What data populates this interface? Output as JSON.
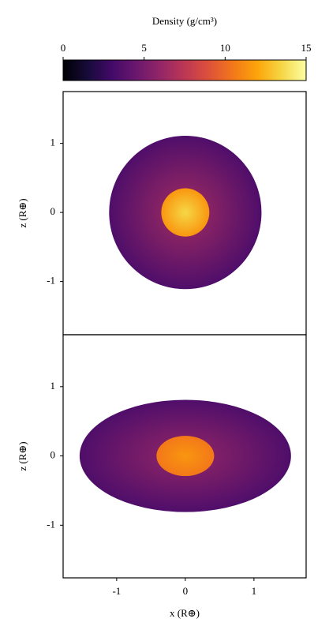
{
  "chart_data": [
    {
      "type": "colorbar",
      "label": "Density (g/cm³)",
      "xlim": [
        0,
        15
      ],
      "xticks": [
        0,
        5,
        10,
        15
      ],
      "colormap": "inferno"
    },
    {
      "type": "density_map",
      "ylabel": "z (R⊕)",
      "xlim": [
        -1.78,
        1.76
      ],
      "ylim": [
        -1.77,
        1.75
      ],
      "yticks": [
        -1,
        0,
        1
      ],
      "colormap": "inferno",
      "regions": [
        {
          "semi_x": 1.11,
          "semi_z": 1.11,
          "density": [
            3.5,
            6.5
          ]
        },
        {
          "semi_x": 0.35,
          "semi_z": 0.35,
          "density": [
            11.5,
            13.5
          ]
        }
      ]
    },
    {
      "type": "density_map",
      "ylabel": "z (R⊕)",
      "xlabel": "x (R⊕)",
      "xlim": [
        -1.78,
        1.76
      ],
      "ylim": [
        -1.76,
        1.75
      ],
      "yticks": [
        -1,
        0,
        1
      ],
      "xticks": [
        -1,
        0,
        1
      ],
      "colormap": "inferno",
      "regions": [
        {
          "semi_x": 1.54,
          "semi_z": 0.81,
          "density": [
            3.5,
            6.0
          ]
        },
        {
          "semi_x": 0.42,
          "semi_z": 0.29,
          "density": [
            10.5,
            11.5
          ]
        }
      ]
    }
  ]
}
